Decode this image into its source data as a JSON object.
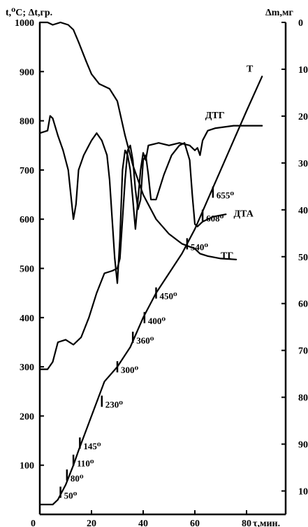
{
  "chart_data": {
    "type": "line",
    "left_axis_title": "t,⁰C; Δt,гр.",
    "right_axis_title": "Δm,мг",
    "x_axis_title": "τ,мин.",
    "x_ticks": [
      20,
      40,
      60,
      80
    ],
    "x_origin_label": "0",
    "y_left_ticks": [
      100,
      200,
      300,
      400,
      500,
      600,
      700,
      800,
      900,
      1000
    ],
    "y_right_ticks": [
      0,
      10,
      20,
      30,
      40,
      50,
      60,
      70,
      80,
      90,
      100
    ],
    "xlim": [
      0,
      95
    ],
    "ylim_left": [
      0,
      1000
    ],
    "ylim_right": [
      0,
      105
    ],
    "series": [
      {
        "name": "Т",
        "label_at": [
          80,
          900
        ],
        "points": [
          [
            0,
            20
          ],
          [
            5,
            20
          ],
          [
            7,
            30
          ],
          [
            10,
            60
          ],
          [
            13,
            100
          ],
          [
            15,
            130
          ],
          [
            20,
            200
          ],
          [
            25,
            270
          ],
          [
            30,
            300
          ],
          [
            35,
            340
          ],
          [
            40,
            400
          ],
          [
            45,
            450
          ],
          [
            55,
            530
          ],
          [
            60,
            580
          ],
          [
            65,
            640
          ],
          [
            70,
            700
          ],
          [
            75,
            760
          ],
          [
            80,
            820
          ],
          [
            86,
            890
          ]
        ]
      },
      {
        "name": "ДТА",
        "label_at": [
          75,
          605
        ],
        "points": [
          [
            0,
            295
          ],
          [
            3,
            295
          ],
          [
            5,
            310
          ],
          [
            7,
            350
          ],
          [
            10,
            355
          ],
          [
            13,
            345
          ],
          [
            16,
            360
          ],
          [
            19,
            400
          ],
          [
            22,
            450
          ],
          [
            25,
            490
          ],
          [
            28,
            495
          ],
          [
            30,
            500
          ],
          [
            31,
            520
          ],
          [
            32,
            600
          ],
          [
            33,
            680
          ],
          [
            34,
            740
          ],
          [
            35,
            750
          ],
          [
            36,
            720
          ],
          [
            37,
            660
          ],
          [
            38,
            620
          ],
          [
            39,
            640
          ],
          [
            40,
            720
          ],
          [
            41,
            730
          ],
          [
            42,
            690
          ],
          [
            43,
            640
          ],
          [
            45,
            640
          ],
          [
            48,
            690
          ],
          [
            51,
            730
          ],
          [
            54,
            750
          ],
          [
            56,
            755
          ],
          [
            58,
            720
          ],
          [
            59,
            650
          ],
          [
            60,
            590
          ],
          [
            61,
            585
          ],
          [
            63,
            595
          ],
          [
            67,
            605
          ],
          [
            72,
            610
          ]
        ]
      },
      {
        "name": "ДТГ",
        "label_at": [
          64,
          805
        ],
        "points": [
          [
            0,
            775
          ],
          [
            3,
            780
          ],
          [
            4,
            810
          ],
          [
            5,
            805
          ],
          [
            7,
            770
          ],
          [
            9,
            740
          ],
          [
            11,
            700
          ],
          [
            12,
            650
          ],
          [
            13,
            600
          ],
          [
            14,
            630
          ],
          [
            15,
            700
          ],
          [
            17,
            730
          ],
          [
            20,
            760
          ],
          [
            22,
            775
          ],
          [
            24,
            760
          ],
          [
            26,
            730
          ],
          [
            27,
            680
          ],
          [
            28,
            600
          ],
          [
            29,
            520
          ],
          [
            30,
            470
          ],
          [
            31,
            560
          ],
          [
            32,
            700
          ],
          [
            33,
            740
          ],
          [
            34,
            730
          ],
          [
            35,
            700
          ],
          [
            36,
            640
          ],
          [
            37,
            580
          ],
          [
            38,
            640
          ],
          [
            39,
            700
          ],
          [
            40,
            735
          ],
          [
            41,
            720
          ],
          [
            42,
            750
          ],
          [
            46,
            755
          ],
          [
            50,
            750
          ],
          [
            54,
            755
          ],
          [
            58,
            750
          ],
          [
            60,
            740
          ],
          [
            61,
            745
          ],
          [
            62,
            730
          ],
          [
            63,
            760
          ],
          [
            65,
            780
          ],
          [
            68,
            785
          ],
          [
            75,
            790
          ],
          [
            86,
            790
          ]
        ]
      },
      {
        "name": "ТГ",
        "label_at": [
          70,
          520
        ],
        "points": [
          [
            0,
            1000
          ],
          [
            3,
            1000
          ],
          [
            5,
            995
          ],
          [
            8,
            1000
          ],
          [
            11,
            995
          ],
          [
            13,
            985
          ],
          [
            15,
            960
          ],
          [
            18,
            920
          ],
          [
            20,
            895
          ],
          [
            23,
            875
          ],
          [
            27,
            865
          ],
          [
            30,
            840
          ],
          [
            33,
            770
          ],
          [
            36,
            710
          ],
          [
            40,
            650
          ],
          [
            45,
            600
          ],
          [
            50,
            570
          ],
          [
            55,
            550
          ],
          [
            60,
            540
          ],
          [
            62,
            530
          ],
          [
            65,
            525
          ],
          [
            70,
            520
          ],
          [
            76,
            518
          ]
        ]
      }
    ],
    "temperature_annotations": [
      {
        "label": "50⁰",
        "x": 8,
        "y": 45
      },
      {
        "label": "80⁰",
        "x": 10.5,
        "y": 80
      },
      {
        "label": "110⁰",
        "x": 13,
        "y": 110
      },
      {
        "label": "145⁰",
        "x": 15.5,
        "y": 145
      },
      {
        "label": "230⁰",
        "x": 24,
        "y": 230
      },
      {
        "label": "300⁰",
        "x": 30,
        "y": 300
      },
      {
        "label": "360⁰",
        "x": 36,
        "y": 360
      },
      {
        "label": "400⁰",
        "x": 40.5,
        "y": 400
      },
      {
        "label": "450⁰",
        "x": 45,
        "y": 450
      },
      {
        "label": "540⁰",
        "x": 57,
        "y": 550
      },
      {
        "label": "608⁰",
        "x": 63,
        "y": 608
      },
      {
        "label": "655⁰",
        "x": 67,
        "y": 655
      }
    ]
  }
}
